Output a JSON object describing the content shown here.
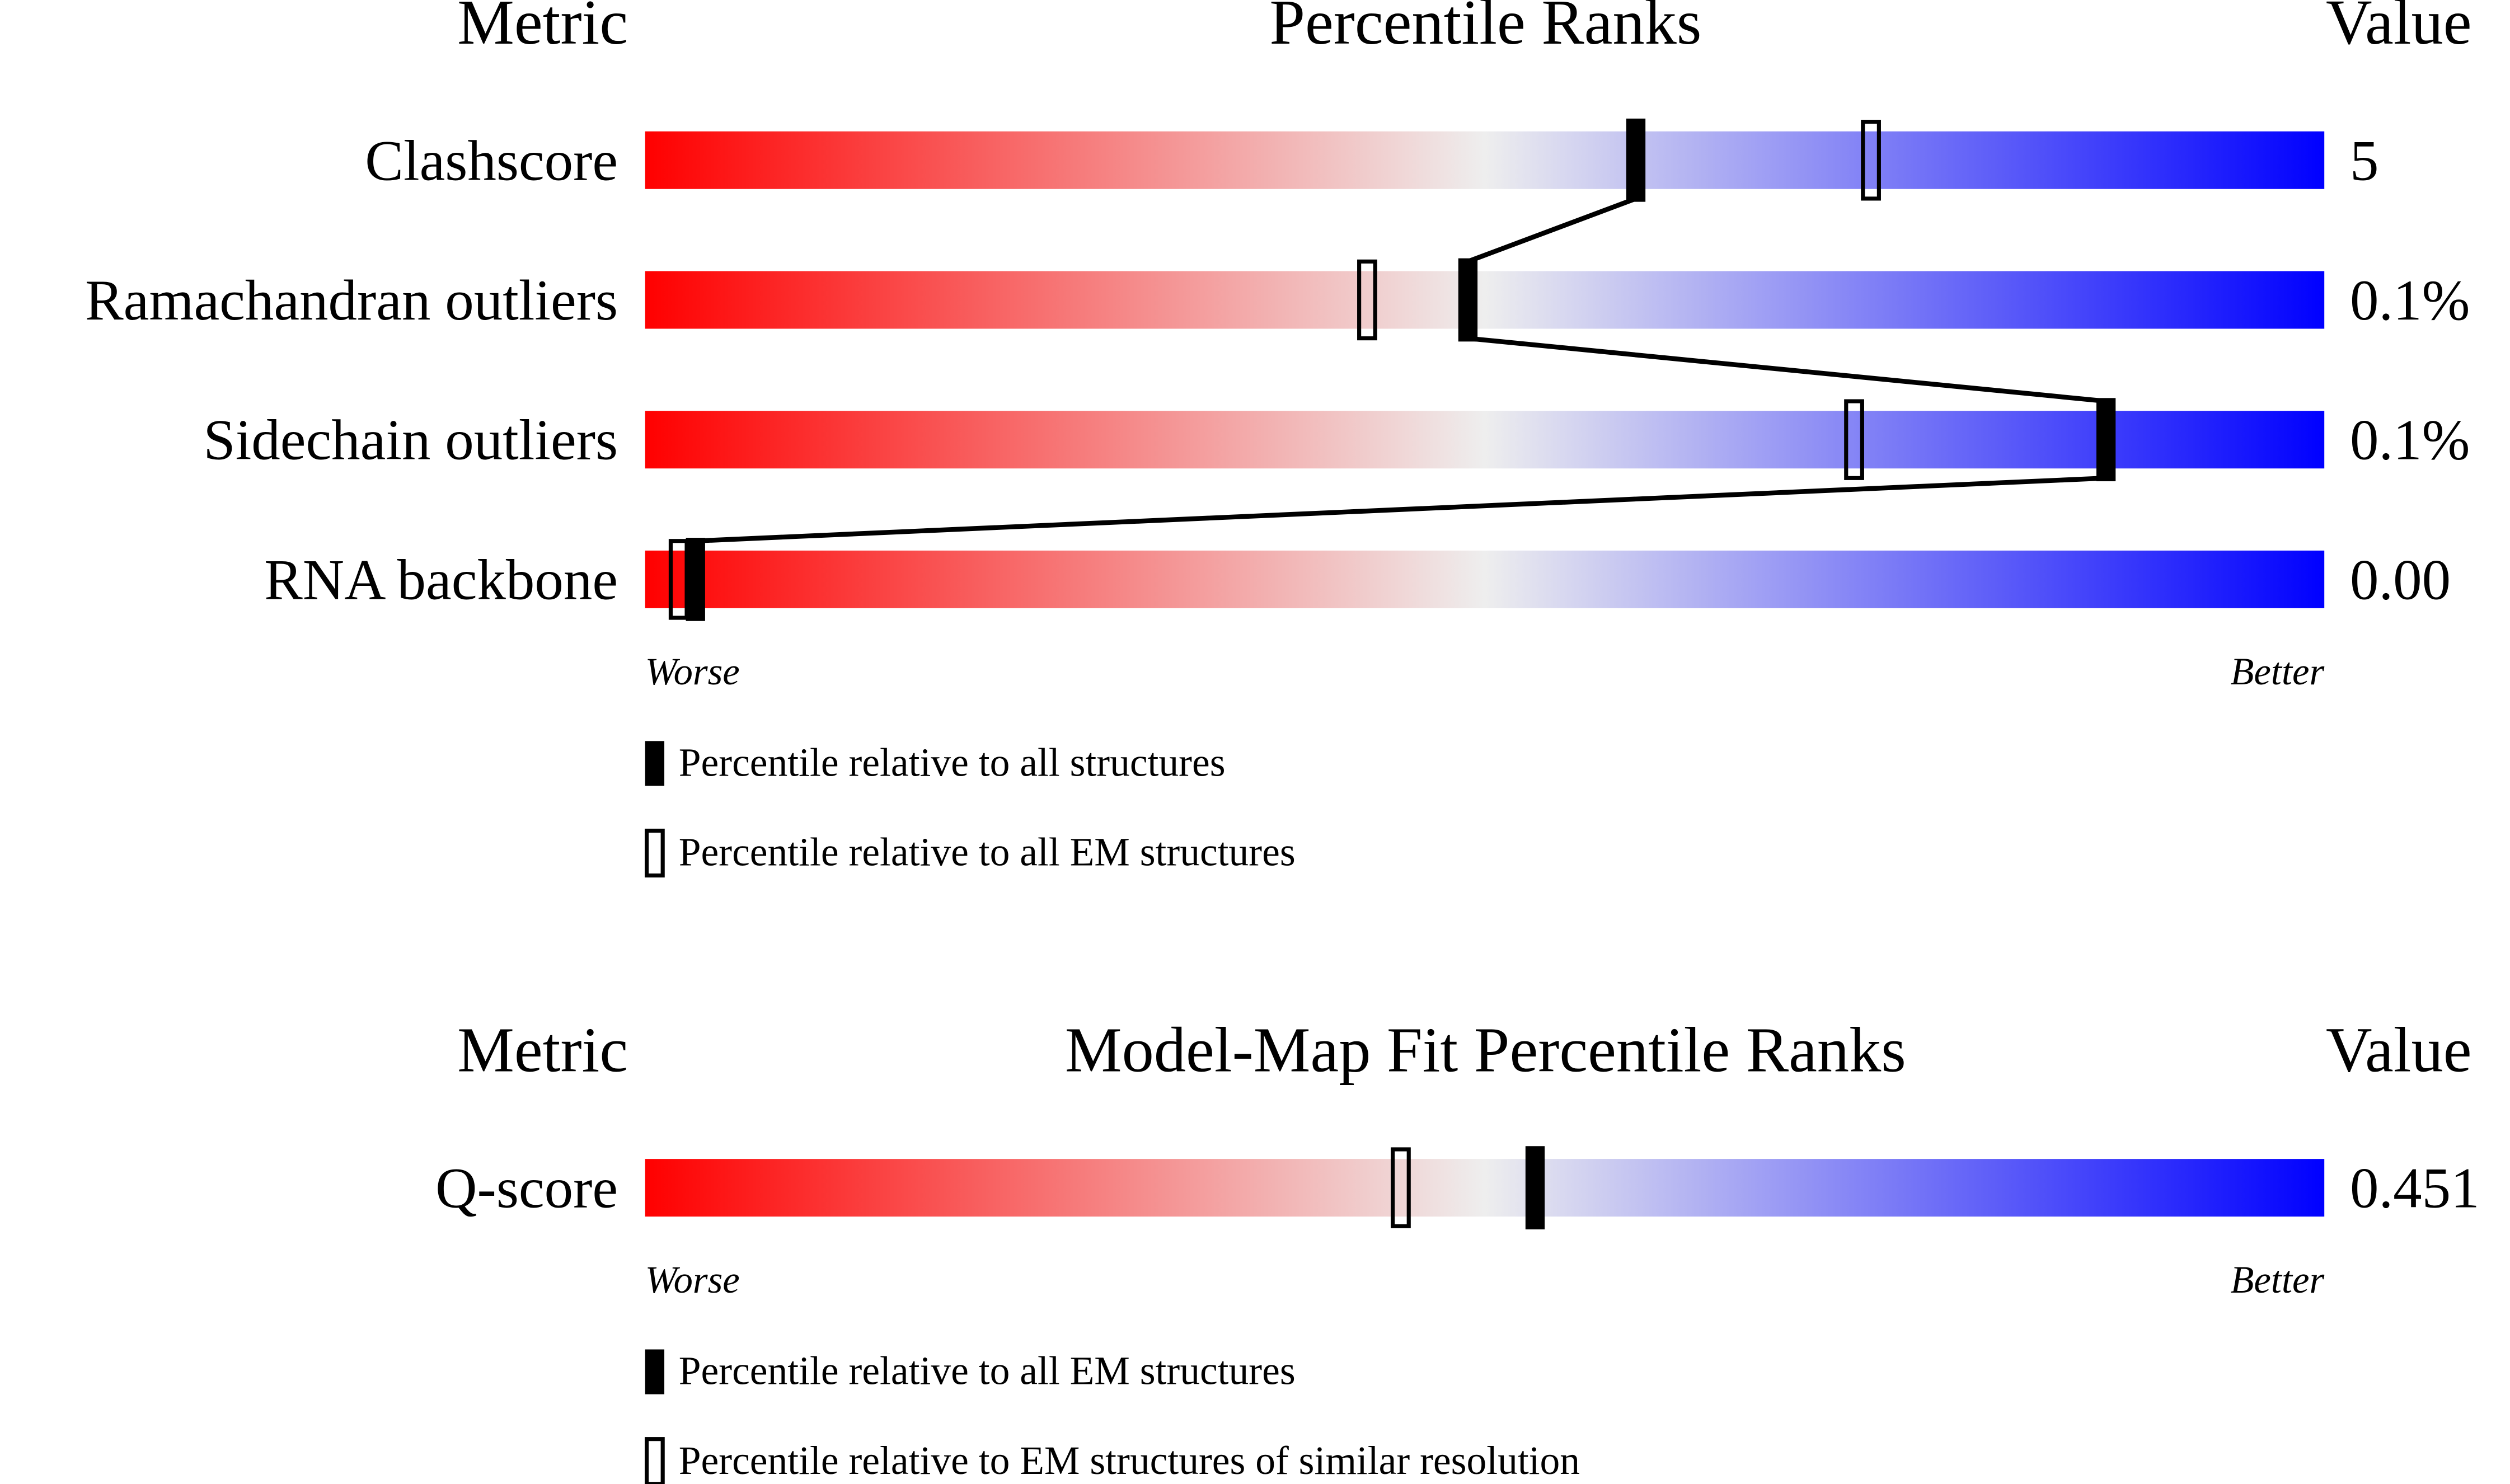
{
  "chart_data": [
    {
      "type": "percentile-slider",
      "title": "Percentile Ranks",
      "metric_header": "Metric",
      "value_header": "Value",
      "categories": [
        "Clashscore",
        "Ramachandran outliers",
        "Sidechain outliers",
        "RNA backbone"
      ],
      "value_column": [
        "5",
        "0.1%",
        "0.1%",
        "0.00"
      ],
      "series": [
        {
          "name": "Percentile relative to all structures",
          "color": "#000000",
          "style": "filled",
          "connected": true,
          "values": [
            59,
            49,
            87,
            3
          ]
        },
        {
          "name": "Percentile relative to all EM structures",
          "color": "#000000",
          "style": "open",
          "connected": false,
          "values": [
            73,
            43,
            72,
            2
          ]
        }
      ],
      "xlim": [
        0,
        100
      ],
      "low_label": "Worse",
      "high_label": "Better",
      "gradient": [
        "#ff0000",
        "#eeeeee",
        "#0000ff"
      ]
    },
    {
      "type": "percentile-slider",
      "title": "Model-Map Fit Percentile Ranks",
      "metric_header": "Metric",
      "value_header": "Value",
      "categories": [
        "Q-score"
      ],
      "value_column": [
        "0.451"
      ],
      "series": [
        {
          "name": "Percentile relative to all EM structures",
          "color": "#000000",
          "style": "filled",
          "connected": true,
          "values": [
            53
          ]
        },
        {
          "name": "Percentile relative to EM structures of similar resolution",
          "color": "#000000",
          "style": "open",
          "connected": false,
          "values": [
            45
          ]
        }
      ],
      "xlim": [
        0,
        100
      ],
      "low_label": "Worse",
      "high_label": "Better",
      "gradient": [
        "#ff0000",
        "#eeeeee",
        "#0000ff"
      ]
    }
  ]
}
